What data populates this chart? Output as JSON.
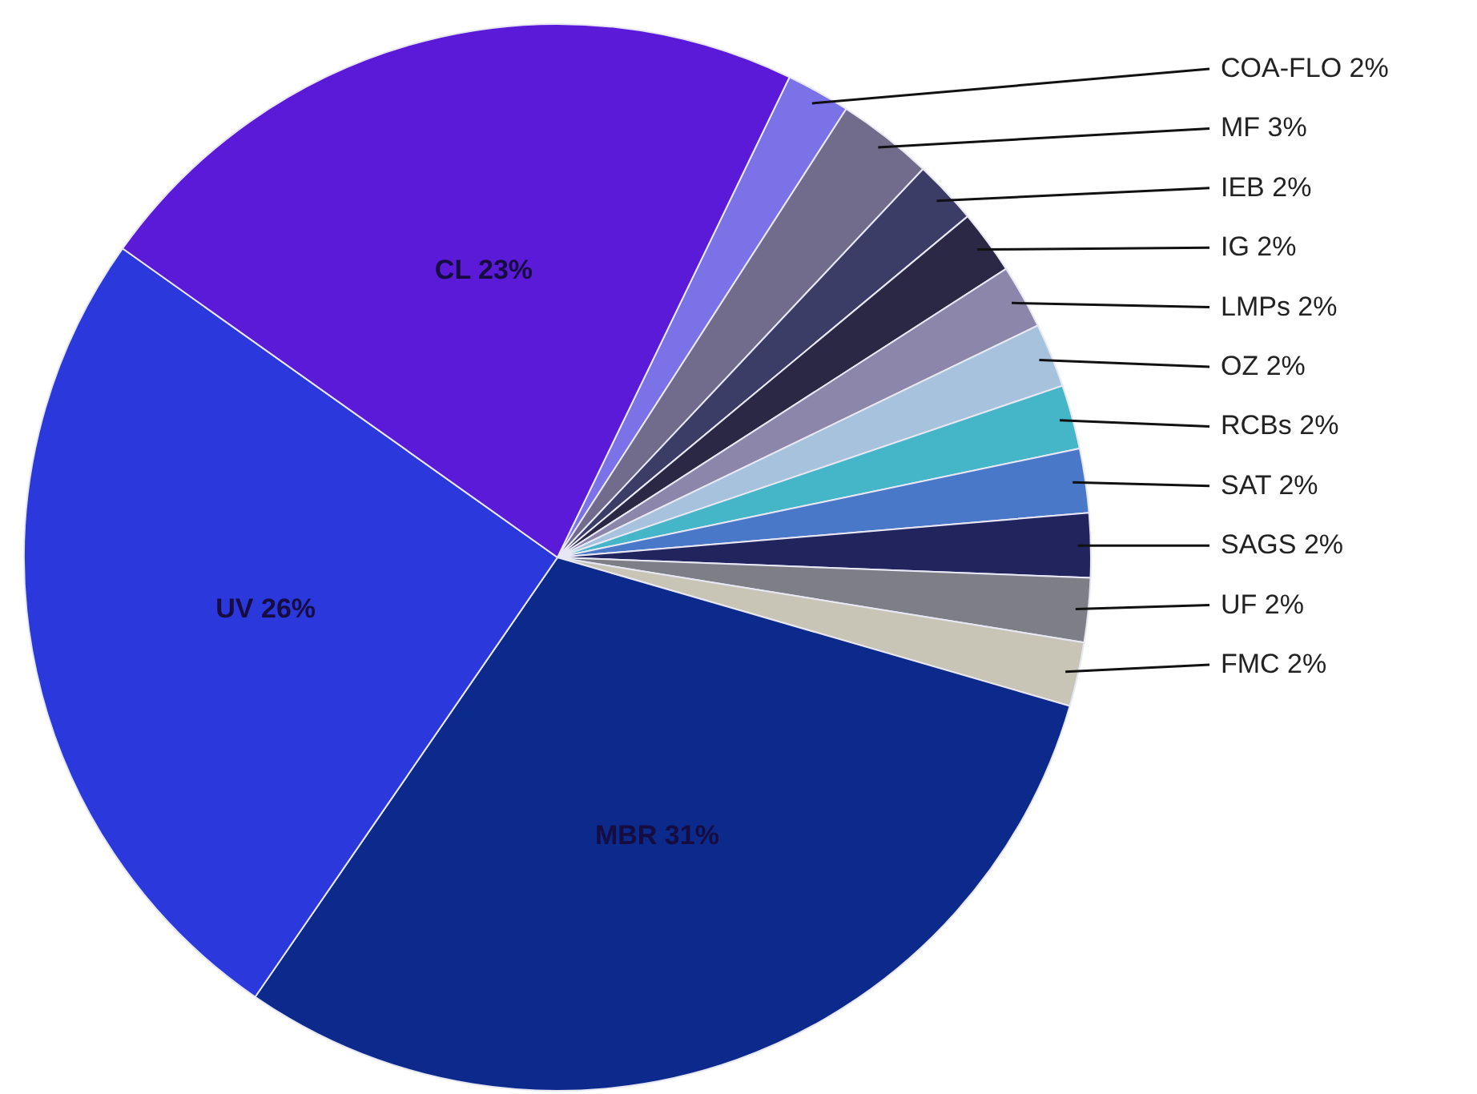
{
  "chart_data": {
    "type": "pie",
    "categories": [
      "COA-FLO",
      "MF",
      "IEB",
      "IG",
      "LMPs",
      "OZ",
      "RCBs",
      "SAT",
      "SAGS",
      "UF",
      "FMC",
      "MBR",
      "UV",
      "CL"
    ],
    "values": [
      2,
      3,
      2,
      2,
      2,
      2,
      2,
      2,
      2,
      2,
      2,
      31,
      26,
      23
    ],
    "value_labels": [
      "2%",
      "3%",
      "2%",
      "2%",
      "2%",
      "2%",
      "2%",
      "2%",
      "2%",
      "2%",
      "2%",
      "31%",
      "26%",
      "23%"
    ],
    "colors": [
      "#7b72e8",
      "#716c8c",
      "#3c3d66",
      "#2a2844",
      "#8c87aa",
      "#a6c2dc",
      "#45b6c8",
      "#4a78c9",
      "#22245e",
      "#7e7e86",
      "#c9c5b6",
      "#0c2a8c",
      "#2a38dc",
      "#5a1ad8"
    ]
  }
}
